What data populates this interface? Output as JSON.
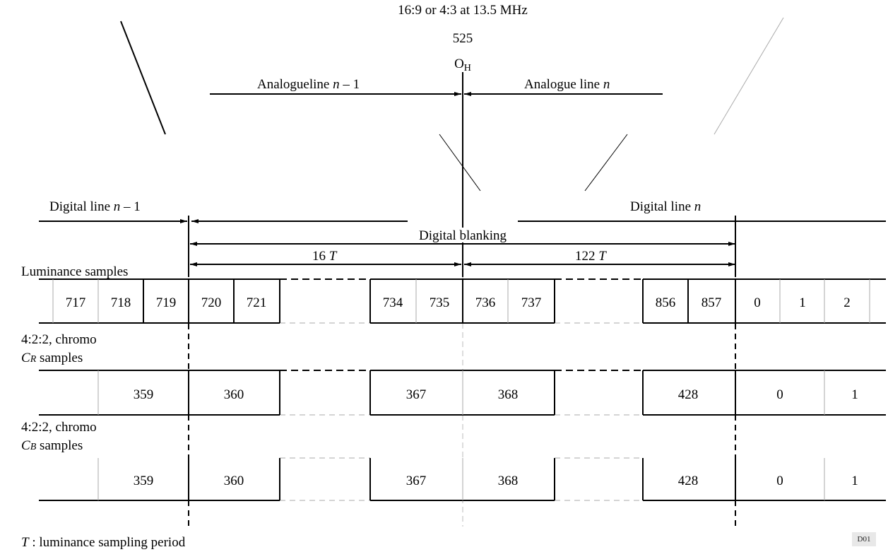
{
  "header": {
    "format": "16:9 or 4:3 at 13.5 MHz",
    "line_count": "525",
    "origin_base": "O",
    "origin_sub": "H"
  },
  "analogue": {
    "prev_text": "Analogueline ",
    "prev_var": "n",
    "prev_suffix": " – 1",
    "next_text": "Analogue line ",
    "next_var": "n"
  },
  "digital": {
    "prev_text": "Digital line ",
    "prev_var": "n",
    "prev_suffix": " – 1",
    "next_text": "Digital line ",
    "next_var": "n",
    "blanking": "Digital blanking"
  },
  "spans": {
    "left_num": "16 ",
    "left_var": "T",
    "right_num": "122 ",
    "right_var": "T"
  },
  "rows": {
    "luminance_label": "Luminance samples",
    "cr_label_1": "4:2:2, chromo",
    "cr_label_var": "C",
    "cr_label_sub": "R",
    "cr_label_2": " samples",
    "cb_label_1": "4:2:2, chromo",
    "cb_label_var": "C",
    "cb_label_sub": "B",
    "cb_label_2": " samples"
  },
  "luminance": [
    "717",
    "718",
    "719",
    "720",
    "721",
    "734",
    "735",
    "736",
    "737",
    "856",
    "857",
    "0",
    "1",
    "2"
  ],
  "cr": [
    "359",
    "360",
    "367",
    "368",
    "428",
    "0",
    "1"
  ],
  "cb": [
    "359",
    "360",
    "367",
    "368",
    "428",
    "0",
    "1"
  ],
  "footer": {
    "var": "T",
    "text": " : luminance sampling period",
    "tag": "D01"
  }
}
